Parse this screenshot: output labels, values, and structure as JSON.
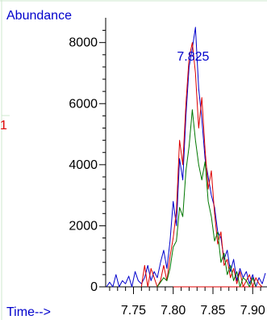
{
  "chart_data": {
    "type": "line",
    "title": "",
    "ylabel": "Abundance",
    "xlabel": "Time-->",
    "side_label": "1",
    "peak_label": "7.825",
    "peak_x": 7.825,
    "xlim": [
      7.715,
      7.918
    ],
    "ylim": [
      0,
      8600
    ],
    "x_ticks": [
      7.75,
      7.8,
      7.85,
      7.9
    ],
    "x_tick_labels": [
      "7.75",
      "7.80",
      "7.85",
      "7.90"
    ],
    "y_ticks": [
      0,
      2000,
      4000,
      6000,
      8000
    ],
    "y_tick_labels": [
      "0",
      "2000",
      "4000",
      "6000",
      "8000"
    ],
    "baseline": {
      "color": "#dd0000",
      "x": [
        7.8,
        7.91
      ],
      "y": [
        0,
        0
      ]
    },
    "series": [
      {
        "color": "#0000cc",
        "x": [
          7.716,
          7.72,
          7.724,
          7.728,
          7.732,
          7.736,
          7.74,
          7.744,
          7.748,
          7.752,
          7.756,
          7.76,
          7.764,
          7.768,
          7.772,
          7.776,
          7.78,
          7.784,
          7.788,
          7.792,
          7.796,
          7.8,
          7.804,
          7.808,
          7.812,
          7.816,
          7.82,
          7.824,
          7.828,
          7.832,
          7.836,
          7.84,
          7.844,
          7.848,
          7.852,
          7.856,
          7.86,
          7.864,
          7.868,
          7.872,
          7.876,
          7.88,
          7.884,
          7.888,
          7.892,
          7.896,
          7.9,
          7.904,
          7.908,
          7.912,
          7.916
        ],
        "y": [
          0,
          150,
          0,
          400,
          0,
          200,
          100,
          350,
          0,
          500,
          200,
          100,
          300,
          700,
          200,
          500,
          300,
          800,
          1200,
          600,
          1500,
          2800,
          2000,
          4200,
          3500,
          5600,
          7200,
          7800,
          8500,
          6500,
          5500,
          4200,
          3600,
          3000,
          2600,
          1800,
          1600,
          900,
          1200,
          500,
          900,
          200,
          600,
          300,
          500,
          100,
          400,
          0,
          300,
          100,
          450
        ]
      },
      {
        "color": "#dd0000",
        "x": [
          7.76,
          7.764,
          7.768,
          7.772,
          7.776,
          7.78,
          7.784,
          7.788,
          7.792,
          7.796,
          7.8,
          7.804,
          7.808,
          7.812,
          7.816,
          7.82,
          7.824,
          7.828,
          7.832,
          7.836,
          7.84,
          7.844,
          7.848,
          7.852,
          7.856,
          7.86,
          7.864,
          7.868,
          7.872,
          7.876,
          7.88,
          7.884,
          7.888,
          7.892,
          7.896,
          7.9,
          7.904,
          7.908,
          7.912
        ],
        "y": [
          0,
          700,
          0,
          600,
          300,
          0,
          200,
          700,
          200,
          1000,
          1600,
          2500,
          4800,
          4000,
          6000,
          7500,
          8000,
          7000,
          5200,
          6200,
          4500,
          3200,
          3800,
          2400,
          1400,
          1800,
          700,
          900,
          300,
          600,
          100,
          500,
          0,
          200,
          400,
          0,
          300,
          100,
          0
        ]
      },
      {
        "color": "#007700",
        "x": [
          7.78,
          7.784,
          7.788,
          7.792,
          7.796,
          7.8,
          7.804,
          7.808,
          7.812,
          7.816,
          7.82,
          7.824,
          7.828,
          7.832,
          7.836,
          7.84,
          7.844,
          7.848,
          7.852,
          7.856,
          7.86,
          7.864,
          7.868,
          7.872,
          7.876,
          7.88,
          7.884,
          7.888,
          7.892,
          7.896,
          7.9,
          7.904
        ],
        "y": [
          0,
          150,
          300,
          200,
          600,
          1300,
          1500,
          2600,
          2300,
          3800,
          4600,
          5800,
          4800,
          4000,
          3500,
          4100,
          2800,
          2300,
          1500,
          1800,
          800,
          1100,
          400,
          700,
          200,
          500,
          0,
          300,
          200,
          0,
          300,
          0
        ]
      }
    ]
  }
}
